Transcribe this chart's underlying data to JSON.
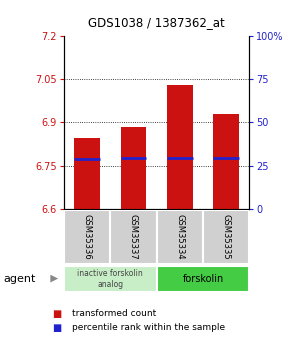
{
  "title": "GDS1038 / 1387362_at",
  "categories": [
    "GSM35336",
    "GSM35337",
    "GSM35334",
    "GSM35335"
  ],
  "bar_tops": [
    6.845,
    6.885,
    7.03,
    6.93
  ],
  "bar_bottom": 6.6,
  "blue_markers": [
    6.772,
    6.778,
    6.778,
    6.775
  ],
  "ylim": [
    6.6,
    7.2
  ],
  "yticks_left": [
    6.6,
    6.75,
    6.9,
    7.05,
    7.2
  ],
  "yticks_right": [
    0,
    25,
    50,
    75,
    100
  ],
  "yticks_right_labels": [
    "0",
    "25",
    "50",
    "75",
    "100%"
  ],
  "bar_color": "#cc1111",
  "blue_color": "#2222cc",
  "group1_label": "inactive forskolin\nanalog",
  "group2_label": "forskolin",
  "group1_color": "#c8eec8",
  "group2_color": "#44cc44",
  "legend_red": "transformed count",
  "legend_blue": "percentile rank within the sample",
  "agent_label": "agent",
  "bar_width": 0.55,
  "tick_color_left": "#cc1111",
  "tick_color_right": "#2222cc",
  "title_fontsize": 8.5,
  "label_fontsize": 6,
  "group_fontsize": 6.5,
  "legend_fontsize": 6.5,
  "agent_fontsize": 8
}
